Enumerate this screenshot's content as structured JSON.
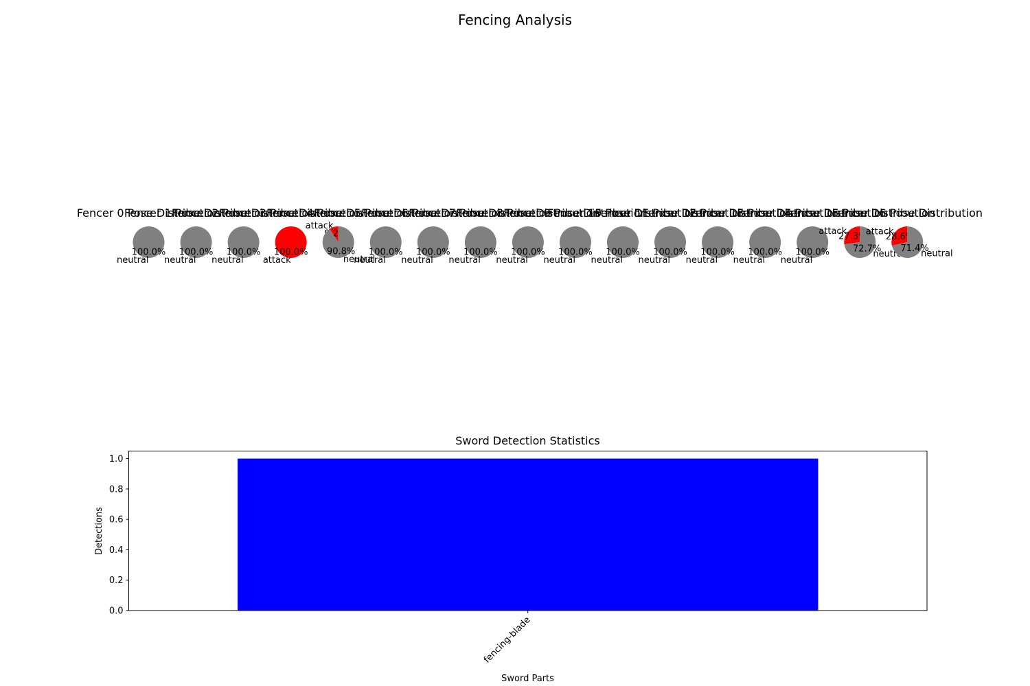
{
  "figure": {
    "title": "Fencing Analysis"
  },
  "chart_data": [
    {
      "type": "pie",
      "group": "fencer-pose-distributions",
      "colors": {
        "neutral": "#808080",
        "attack": "#ff0000"
      },
      "pies": [
        {
          "title": "Fencer 0 Pose Distribution",
          "slices": [
            {
              "label": "neutral",
              "value": 100.0
            }
          ]
        },
        {
          "title": "Fencer 1 Pose Distribution",
          "slices": [
            {
              "label": "neutral",
              "value": 100.0
            }
          ]
        },
        {
          "title": "Fencer 2 Pose Distribution",
          "slices": [
            {
              "label": "neutral",
              "value": 100.0
            }
          ]
        },
        {
          "title": "Fencer 3 Pose Distribution",
          "slices": [
            {
              "label": "attack",
              "value": 100.0
            }
          ]
        },
        {
          "title": "Fencer 4 Pose Distribution",
          "slices": [
            {
              "label": "attack",
              "value": 9.2
            },
            {
              "label": "neutral",
              "value": 90.8
            }
          ]
        },
        {
          "title": "Fencer 5 Pose Distribution",
          "slices": [
            {
              "label": "neutral",
              "value": 100.0
            }
          ]
        },
        {
          "title": "Fencer 6 Pose Distribution",
          "slices": [
            {
              "label": "neutral",
              "value": 100.0
            }
          ]
        },
        {
          "title": "Fencer 7 Pose Distribution",
          "slices": [
            {
              "label": "neutral",
              "value": 100.0
            }
          ]
        },
        {
          "title": "Fencer 8 Pose Distribution",
          "slices": [
            {
              "label": "neutral",
              "value": 100.0
            }
          ]
        },
        {
          "title": "Fencer 9 Pose Distribution",
          "slices": [
            {
              "label": "neutral",
              "value": 100.0
            }
          ]
        },
        {
          "title": "Fencer 10 Pose Distribution",
          "slices": [
            {
              "label": "neutral",
              "value": 100.0
            }
          ]
        },
        {
          "title": "Fencer 11 Pose Distribution",
          "slices": [
            {
              "label": "neutral",
              "value": 100.0
            }
          ]
        },
        {
          "title": "Fencer 12 Pose Distribution",
          "slices": [
            {
              "label": "neutral",
              "value": 100.0
            }
          ]
        },
        {
          "title": "Fencer 13 Pose Distribution",
          "slices": [
            {
              "label": "neutral",
              "value": 100.0
            }
          ]
        },
        {
          "title": "Fencer 14 Pose Distribution",
          "slices": [
            {
              "label": "neutral",
              "value": 100.0
            }
          ]
        },
        {
          "title": "Fencer 15 Pose Distribution",
          "slices": [
            {
              "label": "attack",
              "value": 27.3
            },
            {
              "label": "neutral",
              "value": 72.7
            }
          ]
        },
        {
          "title": "Fencer 16 Pose Distribution",
          "slices": [
            {
              "label": "attack",
              "value": 28.6
            },
            {
              "label": "neutral",
              "value": 71.4
            }
          ]
        }
      ]
    },
    {
      "type": "bar",
      "title": "Sword Detection Statistics",
      "categories": [
        "fencing-blade"
      ],
      "values": [
        1
      ],
      "xlabel": "Sword Parts",
      "ylabel": "Detections",
      "ylim": [
        0,
        1.05
      ],
      "yticks": [
        "0.0",
        "0.2",
        "0.4",
        "0.6",
        "0.8",
        "1.0"
      ],
      "bar_color": "#0000ff",
      "grid": false
    }
  ]
}
